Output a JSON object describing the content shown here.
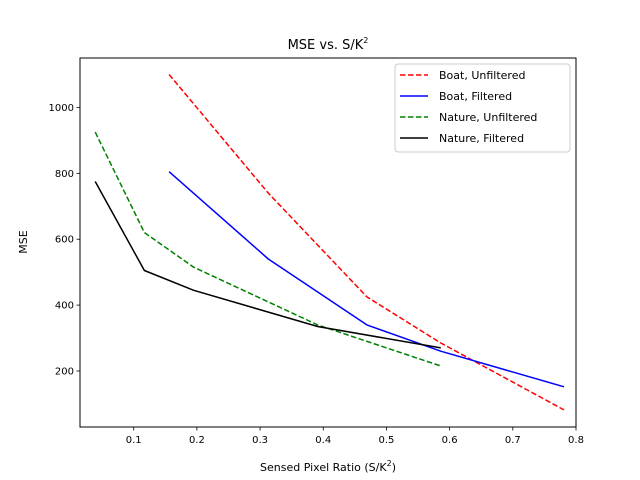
{
  "chart_data": {
    "type": "line",
    "title": "MSE vs. S/K",
    "title_sup": "2",
    "xlabel": "Sensed Pixel Ratio (S/K",
    "xlabel_sup": "2",
    "xlabel_suffix": ")",
    "ylabel": "MSE",
    "xlim": [
      0.015,
      0.8
    ],
    "ylim": [
      30,
      1150
    ],
    "xticks": [
      0.1,
      0.2,
      0.3,
      0.4,
      0.5,
      0.6,
      0.7,
      0.8
    ],
    "xtick_labels": [
      "0.1",
      "0.2",
      "0.3",
      "0.4",
      "0.5",
      "0.6",
      "0.7",
      "0.8"
    ],
    "yticks": [
      200,
      400,
      600,
      800,
      1000
    ],
    "ytick_labels": [
      "200",
      "400",
      "600",
      "800",
      "1000"
    ],
    "grid": false,
    "legend_position": "top-right",
    "series": [
      {
        "name": "Boat, Unfiltered",
        "color": "#ff0000",
        "dash": "dashed",
        "x": [
          0.156,
          0.313,
          0.469,
          0.586,
          0.781
        ],
        "y": [
          1100,
          740,
          425,
          285,
          82
        ]
      },
      {
        "name": "Boat, Filtered",
        "color": "#0000ff",
        "dash": "solid",
        "x": [
          0.156,
          0.313,
          0.469,
          0.586,
          0.781
        ],
        "y": [
          805,
          540,
          340,
          260,
          152
        ]
      },
      {
        "name": "Nature, Unfiltered",
        "color": "#008000",
        "dash": "dashed",
        "x": [
          0.039,
          0.117,
          0.195,
          0.391,
          0.586
        ],
        "y": [
          925,
          620,
          515,
          340,
          215
        ]
      },
      {
        "name": "Nature, Filtered",
        "color": "#000000",
        "dash": "solid",
        "x": [
          0.039,
          0.117,
          0.195,
          0.391,
          0.586
        ],
        "y": [
          775,
          505,
          445,
          335,
          270
        ]
      }
    ]
  }
}
